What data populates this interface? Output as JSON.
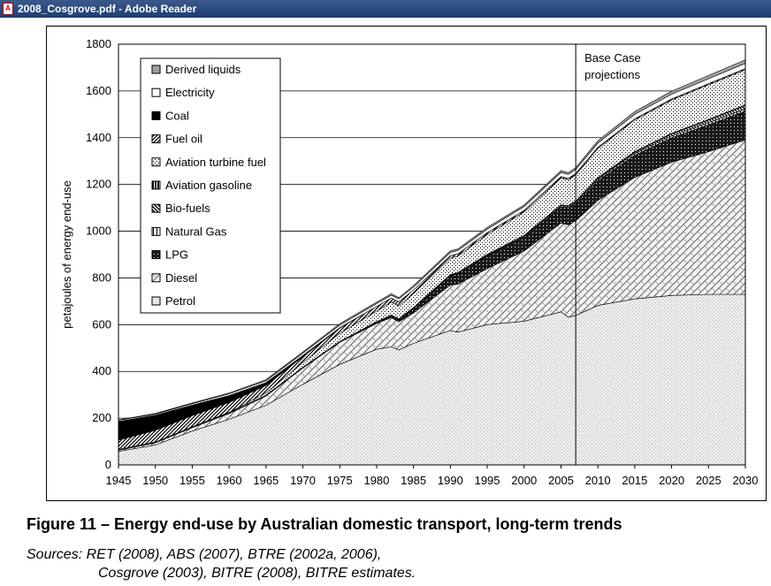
{
  "window": {
    "title": "2008_Cosgrove.pdf - Adobe Reader"
  },
  "figure": {
    "caption": "Figure 11 –  Energy end-use by Australian domestic transport, long-term trends",
    "sources_line1": "Sources: RET (2008), ABS (2007), BTRE (2002a, 2006),",
    "sources_line2": "Cosgrove (2003), BITRE (2008), BITRE estimates."
  },
  "chart_data": {
    "type": "area",
    "stacked": true,
    "title": "",
    "xlabel": "",
    "ylabel": "petajoules of energy end-use",
    "xlim": [
      1945,
      2030
    ],
    "ylim": [
      0,
      1800
    ],
    "x_ticks": [
      1945,
      1950,
      1955,
      1960,
      1965,
      1970,
      1975,
      1980,
      1985,
      1990,
      1995,
      2000,
      2005,
      2010,
      2015,
      2020,
      2025,
      2030
    ],
    "y_ticks": [
      0,
      200,
      400,
      600,
      800,
      1000,
      1200,
      1400,
      1600,
      1800
    ],
    "grid": "horizontal",
    "legend_position": "top-left",
    "annotation": {
      "text_line1": "Base Case",
      "text_line2": "projections",
      "x": 2007
    },
    "x": [
      1945,
      1950,
      1955,
      1960,
      1965,
      1970,
      1975,
      1980,
      1982,
      1983,
      1985,
      1990,
      1991,
      1995,
      2000,
      2005,
      2006,
      2007,
      2010,
      2015,
      2020,
      2025,
      2030
    ],
    "series": [
      {
        "name": "Petrol",
        "values": [
          58,
          85,
          145,
          195,
          255,
          345,
          430,
          495,
          505,
          492,
          520,
          575,
          568,
          600,
          615,
          655,
          632,
          640,
          682,
          710,
          725,
          730,
          730
        ]
      },
      {
        "name": "Diesel",
        "values": [
          5,
          10,
          15,
          25,
          40,
          70,
          95,
          110,
          125,
          120,
          130,
          195,
          205,
          240,
          300,
          380,
          395,
          405,
          450,
          520,
          570,
          610,
          660
        ]
      },
      {
        "name": "LPG",
        "values": [
          0,
          0,
          0,
          0,
          0,
          0,
          0,
          5,
          8,
          10,
          20,
          40,
          45,
          55,
          60,
          70,
          75,
          75,
          85,
          95,
          105,
          115,
          125
        ]
      },
      {
        "name": "Natural Gas",
        "values": [
          0,
          0,
          0,
          0,
          0,
          0,
          0,
          0,
          0,
          0,
          0,
          2,
          2,
          3,
          4,
          5,
          5,
          5,
          6,
          7,
          7,
          8,
          8
        ]
      },
      {
        "name": "Bio-fuels",
        "values": [
          0,
          0,
          0,
          0,
          0,
          0,
          0,
          0,
          0,
          0,
          0,
          0,
          0,
          0,
          0,
          0,
          0,
          1,
          3,
          6,
          9,
          12,
          15
        ]
      },
      {
        "name": "Aviation gasoline",
        "values": [
          3,
          3,
          3,
          3,
          3,
          3,
          3,
          3,
          3,
          3,
          3,
          3,
          3,
          3,
          3,
          3,
          3,
          3,
          3,
          3,
          3,
          3,
          3
        ]
      },
      {
        "name": "Aviation turbine fuel",
        "values": [
          0,
          0,
          0,
          2,
          10,
          20,
          35,
          45,
          55,
          55,
          60,
          70,
          70,
          85,
          100,
          115,
          110,
          112,
          125,
          135,
          142,
          148,
          150
        ]
      },
      {
        "name": "Fuel oil",
        "values": [
          40,
          50,
          48,
          42,
          32,
          25,
          22,
          20,
          18,
          18,
          15,
          10,
          10,
          8,
          7,
          6,
          6,
          6,
          5,
          5,
          5,
          5,
          5
        ]
      },
      {
        "name": "Coal",
        "values": [
          80,
          65,
          45,
          30,
          12,
          5,
          2,
          0,
          0,
          0,
          0,
          0,
          0,
          0,
          0,
          0,
          0,
          0,
          0,
          0,
          0,
          0,
          0
        ]
      },
      {
        "name": "Electricity",
        "values": [
          5,
          5,
          6,
          7,
          8,
          10,
          11,
          12,
          12,
          12,
          13,
          14,
          14,
          15,
          16,
          17,
          17,
          17,
          18,
          19,
          20,
          21,
          22
        ]
      },
      {
        "name": "Derived liquids",
        "values": [
          2,
          2,
          3,
          4,
          5,
          5,
          6,
          6,
          6,
          6,
          6,
          7,
          7,
          7,
          7,
          8,
          8,
          8,
          10,
          12,
          13,
          14,
          15
        ]
      }
    ]
  }
}
